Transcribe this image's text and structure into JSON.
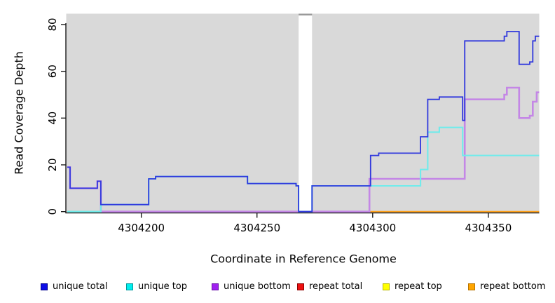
{
  "figure": {
    "xlabel": "Coordinate in Reference Genome",
    "ylabel": "Read Coverage Depth"
  },
  "legend": {
    "items": [
      {
        "label": "unique total",
        "color": "#0d0de6",
        "border": "#00008b"
      },
      {
        "label": "unique top",
        "color": "#00eeee",
        "border": "#00999b"
      },
      {
        "label": "unique bottom",
        "color": "#a020f0",
        "border": "#6912a8"
      },
      {
        "label": "repeat total",
        "color": "#ee1111",
        "border": "#8b0000"
      },
      {
        "label": "repeat top",
        "color": "#ffff00",
        "border": "#b8b800"
      },
      {
        "label": "repeat bottom",
        "color": "#ffa500",
        "border": "#b87400"
      }
    ]
  },
  "chart_data": {
    "type": "line",
    "step": true,
    "title": "",
    "xlabel": "Coordinate in Reference Genome",
    "ylabel": "Read Coverage Depth",
    "xlim": [
      4304168,
      4304372
    ],
    "ylim": [
      0,
      84.5
    ],
    "x_ticks": [
      4304200,
      4304250,
      4304300,
      4304350
    ],
    "y_ticks": [
      0,
      20,
      40,
      60,
      80
    ],
    "grid": false,
    "plot_background": "#d9d9d9",
    "axis_color": "#1a1a1a",
    "masked_region": {
      "x_start": 4304268,
      "x_end": 4304273.8,
      "color": "#ffffff",
      "cap_color": "#9a9a9a"
    },
    "series": [
      {
        "name": "repeat top",
        "color": "#f0f080",
        "width": 1.4,
        "points": [
          [
            4304168,
            0
          ]
        ]
      },
      {
        "name": "repeat total",
        "color": "#e06c9c",
        "width": 1.4,
        "points": [
          [
            4304168,
            0
          ]
        ]
      },
      {
        "name": "repeat bottom",
        "color": "#ffa018",
        "width": 1.6,
        "points": [
          [
            4304168,
            0
          ]
        ]
      },
      {
        "name": "unique bottom",
        "color": "#c487e6",
        "width": 2.6,
        "points": [
          [
            4304168,
            19
          ],
          [
            4304169.2,
            10
          ],
          [
            4304181,
            13
          ],
          [
            4304182.5,
            0
          ],
          [
            4304298.6,
            14
          ],
          [
            4304339.8,
            48
          ],
          [
            4304356.9,
            50
          ],
          [
            4304358,
            53
          ],
          [
            4304363.3,
            40
          ],
          [
            4304367.9,
            41
          ],
          [
            4304369.2,
            47
          ],
          [
            4304370.9,
            51
          ]
        ]
      },
      {
        "name": "unique top",
        "color": "#70ebeb",
        "width": 2.1,
        "points": [
          [
            4304168,
            0
          ],
          [
            4304182.5,
            3
          ],
          [
            4304203.2,
            14
          ],
          [
            4304206.2,
            15
          ],
          [
            4304245.9,
            12
          ],
          [
            4304266.9,
            11
          ],
          [
            4304268,
            0
          ],
          [
            4304273.8,
            11
          ],
          [
            4304320.7,
            18
          ],
          [
            4304323.8,
            34
          ],
          [
            4304328.8,
            36
          ],
          [
            4304338.9,
            24
          ]
        ]
      },
      {
        "name": "unique total",
        "color": "#3038dd",
        "width": 1.8,
        "points": [
          [
            4304168,
            19
          ],
          [
            4304169.2,
            10
          ],
          [
            4304181,
            13
          ],
          [
            4304182.5,
            3
          ],
          [
            4304203.2,
            14
          ],
          [
            4304206.2,
            15
          ],
          [
            4304245.9,
            12
          ],
          [
            4304266.9,
            11
          ],
          [
            4304268,
            0
          ],
          [
            4304273.8,
            11
          ],
          [
            4304299.1,
            24
          ],
          [
            4304302.6,
            25
          ],
          [
            4304320.7,
            32
          ],
          [
            4304323.8,
            48
          ],
          [
            4304328.8,
            49
          ],
          [
            4304338.9,
            39
          ],
          [
            4304339.8,
            73
          ],
          [
            4304356.9,
            75
          ],
          [
            4304358,
            77
          ],
          [
            4304363.3,
            63
          ],
          [
            4304367.9,
            64
          ],
          [
            4304369.2,
            73
          ],
          [
            4304370.3,
            75
          ]
        ]
      }
    ],
    "baseline_segments": [
      {
        "from": 4304168,
        "to": 4304182.5,
        "color": "#84d784"
      },
      {
        "from": 4304182.5,
        "to": 4304298.6,
        "color": "#e1679e"
      },
      {
        "from": 4304298.6,
        "to": 4304372,
        "color": "#ffa018"
      }
    ]
  }
}
